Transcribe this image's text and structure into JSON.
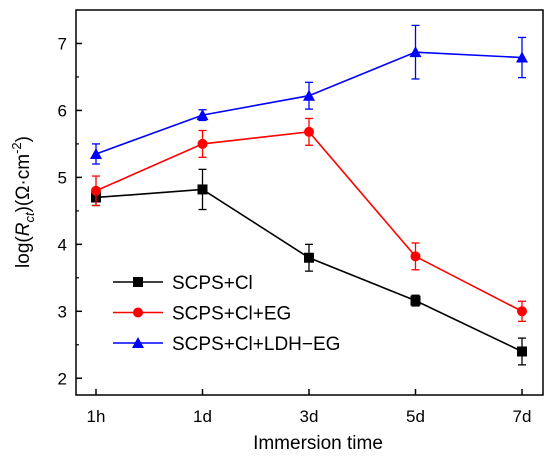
{
  "chart_data": {
    "type": "line",
    "xlabel": "Immersion time",
    "ylabel": {
      "prefix": "log(",
      "italic": "R",
      "subscript": "ct",
      "middle": ")(Ω·cm",
      "superscript": "-2",
      "suffix": ")"
    },
    "categories": [
      "1h",
      "1d",
      "3d",
      "5d",
      "7d"
    ],
    "ylim": [
      1.75,
      7.5
    ],
    "yticks": [
      "2",
      "3",
      "4",
      "5",
      "6",
      "7"
    ],
    "ytick_values": [
      2,
      3,
      4,
      5,
      6,
      7
    ],
    "grid": false,
    "legend_position": "bottom-left",
    "series": [
      {
        "name": "SCPS+Cl",
        "color": "#000000",
        "marker": "square",
        "values": [
          4.7,
          4.82,
          3.8,
          3.16,
          2.4
        ],
        "error": [
          0.12,
          0.3,
          0.2,
          0.08,
          0.2
        ]
      },
      {
        "name": "SCPS+Cl+EG",
        "color": "#ff0000",
        "marker": "circle",
        "values": [
          4.8,
          5.5,
          5.68,
          3.82,
          3.0
        ],
        "error": [
          0.22,
          0.2,
          0.2,
          0.2,
          0.15
        ]
      },
      {
        "name": "SCPS+Cl+LDH−EG",
        "color": "#0000ff",
        "marker": "triangle",
        "values": [
          5.35,
          5.93,
          6.22,
          6.87,
          6.79
        ],
        "error": [
          0.15,
          0.08,
          0.2,
          0.4,
          0.3
        ]
      }
    ]
  }
}
